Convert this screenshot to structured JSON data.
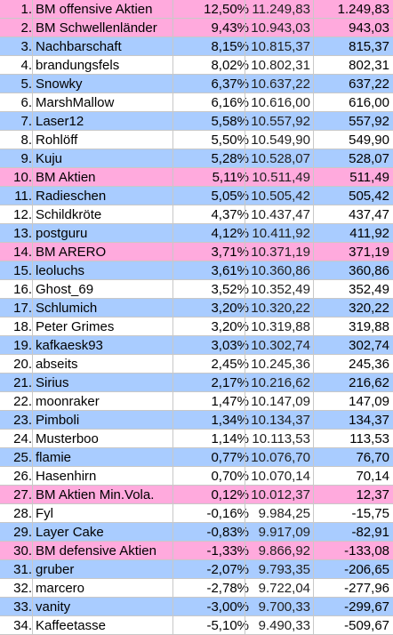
{
  "colors": {
    "pink": "#ffaadd",
    "blue": "#a9ccff",
    "white": "#ffffff"
  },
  "rows": [
    {
      "rank": "1.",
      "name": "BM offensive Aktien",
      "pct": "12,50%",
      "value": "11.249,83",
      "gain": "1.249,83",
      "color": "pink"
    },
    {
      "rank": "2.",
      "name": "BM Schwellenländer",
      "pct": "9,43%",
      "value": "10.943,03",
      "gain": "943,03",
      "color": "pink"
    },
    {
      "rank": "3.",
      "name": "Nachbarschaft",
      "pct": "8,15%",
      "value": "10.815,37",
      "gain": "815,37",
      "color": "blue"
    },
    {
      "rank": "4.",
      "name": "brandungsfels",
      "pct": "8,02%",
      "value": "10.802,31",
      "gain": "802,31",
      "color": "white"
    },
    {
      "rank": "5.",
      "name": "Snowky",
      "pct": "6,37%",
      "value": "10.637,22",
      "gain": "637,22",
      "color": "blue"
    },
    {
      "rank": "6.",
      "name": "MarshMallow",
      "pct": "6,16%",
      "value": "10.616,00",
      "gain": "616,00",
      "color": "white"
    },
    {
      "rank": "7.",
      "name": "Laser12",
      "pct": "5,58%",
      "value": "10.557,92",
      "gain": "557,92",
      "color": "blue"
    },
    {
      "rank": "8.",
      "name": "Rohlöff",
      "pct": "5,50%",
      "value": "10.549,90",
      "gain": "549,90",
      "color": "white"
    },
    {
      "rank": "9.",
      "name": "Kuju",
      "pct": "5,28%",
      "value": "10.528,07",
      "gain": "528,07",
      "color": "blue"
    },
    {
      "rank": "10.",
      "name": "BM Aktien",
      "pct": "5,11%",
      "value": "10.511,49",
      "gain": "511,49",
      "color": "pink"
    },
    {
      "rank": "11.",
      "name": "Radieschen",
      "pct": "5,05%",
      "value": "10.505,42",
      "gain": "505,42",
      "color": "blue"
    },
    {
      "rank": "12.",
      "name": "Schildkröte",
      "pct": "4,37%",
      "value": "10.437,47",
      "gain": "437,47",
      "color": "white"
    },
    {
      "rank": "13.",
      "name": "postguru",
      "pct": "4,12%",
      "value": "10.411,92",
      "gain": "411,92",
      "color": "blue"
    },
    {
      "rank": "14.",
      "name": "BM ARERO",
      "pct": "3,71%",
      "value": "10.371,19",
      "gain": "371,19",
      "color": "pink"
    },
    {
      "rank": "15.",
      "name": "leoluchs",
      "pct": "3,61%",
      "value": "10.360,86",
      "gain": "360,86",
      "color": "blue"
    },
    {
      "rank": "16.",
      "name": "Ghost_69",
      "pct": "3,52%",
      "value": "10.352,49",
      "gain": "352,49",
      "color": "white"
    },
    {
      "rank": "17.",
      "name": "Schlumich",
      "pct": "3,20%",
      "value": "10.320,22",
      "gain": "320,22",
      "color": "blue"
    },
    {
      "rank": "18.",
      "name": "Peter Grimes",
      "pct": "3,20%",
      "value": "10.319,88",
      "gain": "319,88",
      "color": "white"
    },
    {
      "rank": "19.",
      "name": "kafkaesk93",
      "pct": "3,03%",
      "value": "10.302,74",
      "gain": "302,74",
      "color": "blue"
    },
    {
      "rank": "20.",
      "name": "abseits",
      "pct": "2,45%",
      "value": "10.245,36",
      "gain": "245,36",
      "color": "white"
    },
    {
      "rank": "21.",
      "name": "Sirius",
      "pct": "2,17%",
      "value": "10.216,62",
      "gain": "216,62",
      "color": "blue"
    },
    {
      "rank": "22.",
      "name": "moonraker",
      "pct": "1,47%",
      "value": "10.147,09",
      "gain": "147,09",
      "color": "white"
    },
    {
      "rank": "23.",
      "name": "Pimboli",
      "pct": "1,34%",
      "value": "10.134,37",
      "gain": "134,37",
      "color": "blue"
    },
    {
      "rank": "24.",
      "name": "Musterboo",
      "pct": "1,14%",
      "value": "10.113,53",
      "gain": "113,53",
      "color": "white"
    },
    {
      "rank": "25.",
      "name": "flamie",
      "pct": "0,77%",
      "value": "10.076,70",
      "gain": "76,70",
      "color": "blue"
    },
    {
      "rank": "26.",
      "name": "Hasenhirn",
      "pct": "0,70%",
      "value": "10.070,14",
      "gain": "70,14",
      "color": "white"
    },
    {
      "rank": "27.",
      "name": "BM Aktien Min.Vola.",
      "pct": "0,12%",
      "value": "10.012,37",
      "gain": "12,37",
      "color": "pink"
    },
    {
      "rank": "28.",
      "name": "Fyl",
      "pct": "-0,16%",
      "value": "9.984,25",
      "gain": "-15,75",
      "color": "white"
    },
    {
      "rank": "29.",
      "name": "Layer Cake",
      "pct": "-0,83%",
      "value": "9.917,09",
      "gain": "-82,91",
      "color": "blue"
    },
    {
      "rank": "30.",
      "name": "BM defensive Aktien",
      "pct": "-1,33%",
      "value": "9.866,92",
      "gain": "-133,08",
      "color": "pink"
    },
    {
      "rank": "31.",
      "name": "gruber",
      "pct": "-2,07%",
      "value": "9.793,35",
      "gain": "-206,65",
      "color": "blue"
    },
    {
      "rank": "32.",
      "name": "marcero",
      "pct": "-2,78%",
      "value": "9.722,04",
      "gain": "-277,96",
      "color": "white"
    },
    {
      "rank": "33.",
      "name": "vanity",
      "pct": "-3,00%",
      "value": "9.700,33",
      "gain": "-299,67",
      "color": "blue"
    },
    {
      "rank": "34.",
      "name": "Kaffeetasse",
      "pct": "-5,10%",
      "value": "9.490,33",
      "gain": "-509,67",
      "color": "white"
    }
  ]
}
